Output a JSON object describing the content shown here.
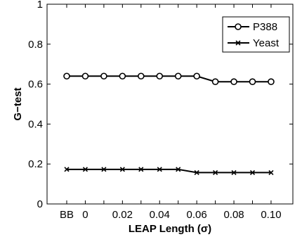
{
  "chart_data": {
    "type": "line",
    "xlabel": "LEAP Length (σ)",
    "ylabel": "G−test",
    "x_categories": [
      "BB",
      "0",
      "0.01",
      "0.02",
      "0.03",
      "0.04",
      "0.05",
      "0.06",
      "0.07",
      "0.08",
      "0.09",
      "0.10"
    ],
    "x_tick_labels": [
      "BB",
      "0",
      "0.02",
      "0.04",
      "0.06",
      "0.08",
      "0.10"
    ],
    "ylim": [
      0,
      1
    ],
    "y_ticks": [
      "0",
      "0.2",
      "0.4",
      "0.6",
      "0.8",
      "1"
    ],
    "legend_position": "top-right",
    "grid": false,
    "series": [
      {
        "name": "P388",
        "marker": "circle",
        "color": "#000000",
        "values": [
          0.64,
          0.64,
          0.64,
          0.64,
          0.64,
          0.64,
          0.64,
          0.64,
          0.612,
          0.612,
          0.612,
          0.612
        ]
      },
      {
        "name": "Yeast",
        "marker": "x",
        "color": "#000000",
        "values": [
          0.173,
          0.173,
          0.173,
          0.173,
          0.173,
          0.173,
          0.173,
          0.157,
          0.157,
          0.157,
          0.157,
          0.157
        ]
      }
    ]
  }
}
